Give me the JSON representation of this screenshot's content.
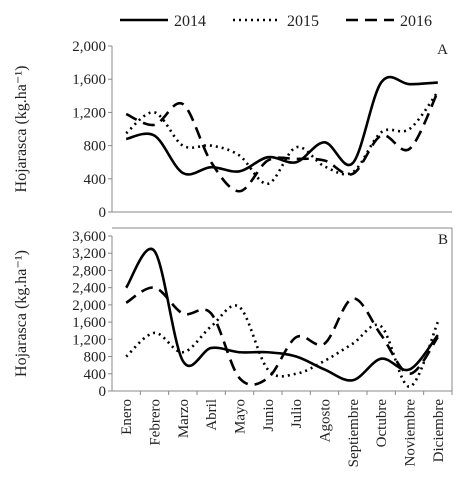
{
  "chart_data": [
    {
      "type": "line",
      "panel_label": "A",
      "ylabel": "Hojarasca (kg.ha⁻¹)",
      "ylim": [
        0,
        2000
      ],
      "yticks": [
        {
          "value": 0,
          "label": "0"
        },
        {
          "value": 400,
          "label": "400"
        },
        {
          "value": 800,
          "label": "800"
        },
        {
          "value": 1200,
          "label": "1,200"
        },
        {
          "value": 1600,
          "label": "1,600"
        },
        {
          "value": 2000,
          "label": "2,000"
        }
      ],
      "series": [
        {
          "name": "2014",
          "color": "#000000",
          "dash": "solid",
          "values": [
            880,
            920,
            470,
            540,
            490,
            660,
            600,
            840,
            590,
            1560,
            1540,
            1560
          ]
        },
        {
          "name": "2015",
          "color": "#000000",
          "dash": "dotted",
          "values": [
            950,
            1200,
            800,
            800,
            680,
            340,
            780,
            550,
            480,
            960,
            1000,
            1450
          ]
        },
        {
          "name": "2016",
          "color": "#000000",
          "dash": "dashed",
          "values": [
            1180,
            1050,
            1300,
            600,
            250,
            620,
            640,
            620,
            460,
            920,
            760,
            1450
          ]
        }
      ]
    },
    {
      "type": "line",
      "panel_label": "B",
      "ylabel": "Hojarasca (kg.ha⁻¹)",
      "categories": [
        "Enero",
        "Febrero",
        "Marzo",
        "Abril",
        "Mayo",
        "Junio",
        "Julio",
        "Agosto",
        "Septiembre",
        "Octubre",
        "Noviembre",
        "Diciembre"
      ],
      "ylim": [
        0,
        3600
      ],
      "yticks": [
        {
          "value": 0,
          "label": "0"
        },
        {
          "value": 400,
          "label": "400"
        },
        {
          "value": 800,
          "label": "800"
        },
        {
          "value": 1200,
          "label": "1,200"
        },
        {
          "value": 1600,
          "label": "1,600"
        },
        {
          "value": 2000,
          "label": "2,000"
        },
        {
          "value": 2400,
          "label": "2,400"
        },
        {
          "value": 2800,
          "label": "2,800"
        },
        {
          "value": 3200,
          "label": "3,200"
        },
        {
          "value": 3600,
          "label": "3,600"
        }
      ],
      "series": [
        {
          "color": "#000000",
          "dash": "solid",
          "values": [
            2400,
            3250,
            700,
            1000,
            900,
            900,
            800,
            500,
            250,
            750,
            500,
            1300
          ]
        },
        {
          "color": "#000000",
          "dash": "dotted",
          "values": [
            800,
            1350,
            900,
            1500,
            1950,
            500,
            400,
            700,
            1100,
            1500,
            100,
            1600
          ]
        },
        {
          "color": "#000000",
          "dash": "dashed",
          "values": [
            2050,
            2400,
            1800,
            1800,
            300,
            300,
            1250,
            1100,
            2150,
            1300,
            400,
            1250
          ]
        }
      ]
    }
  ]
}
